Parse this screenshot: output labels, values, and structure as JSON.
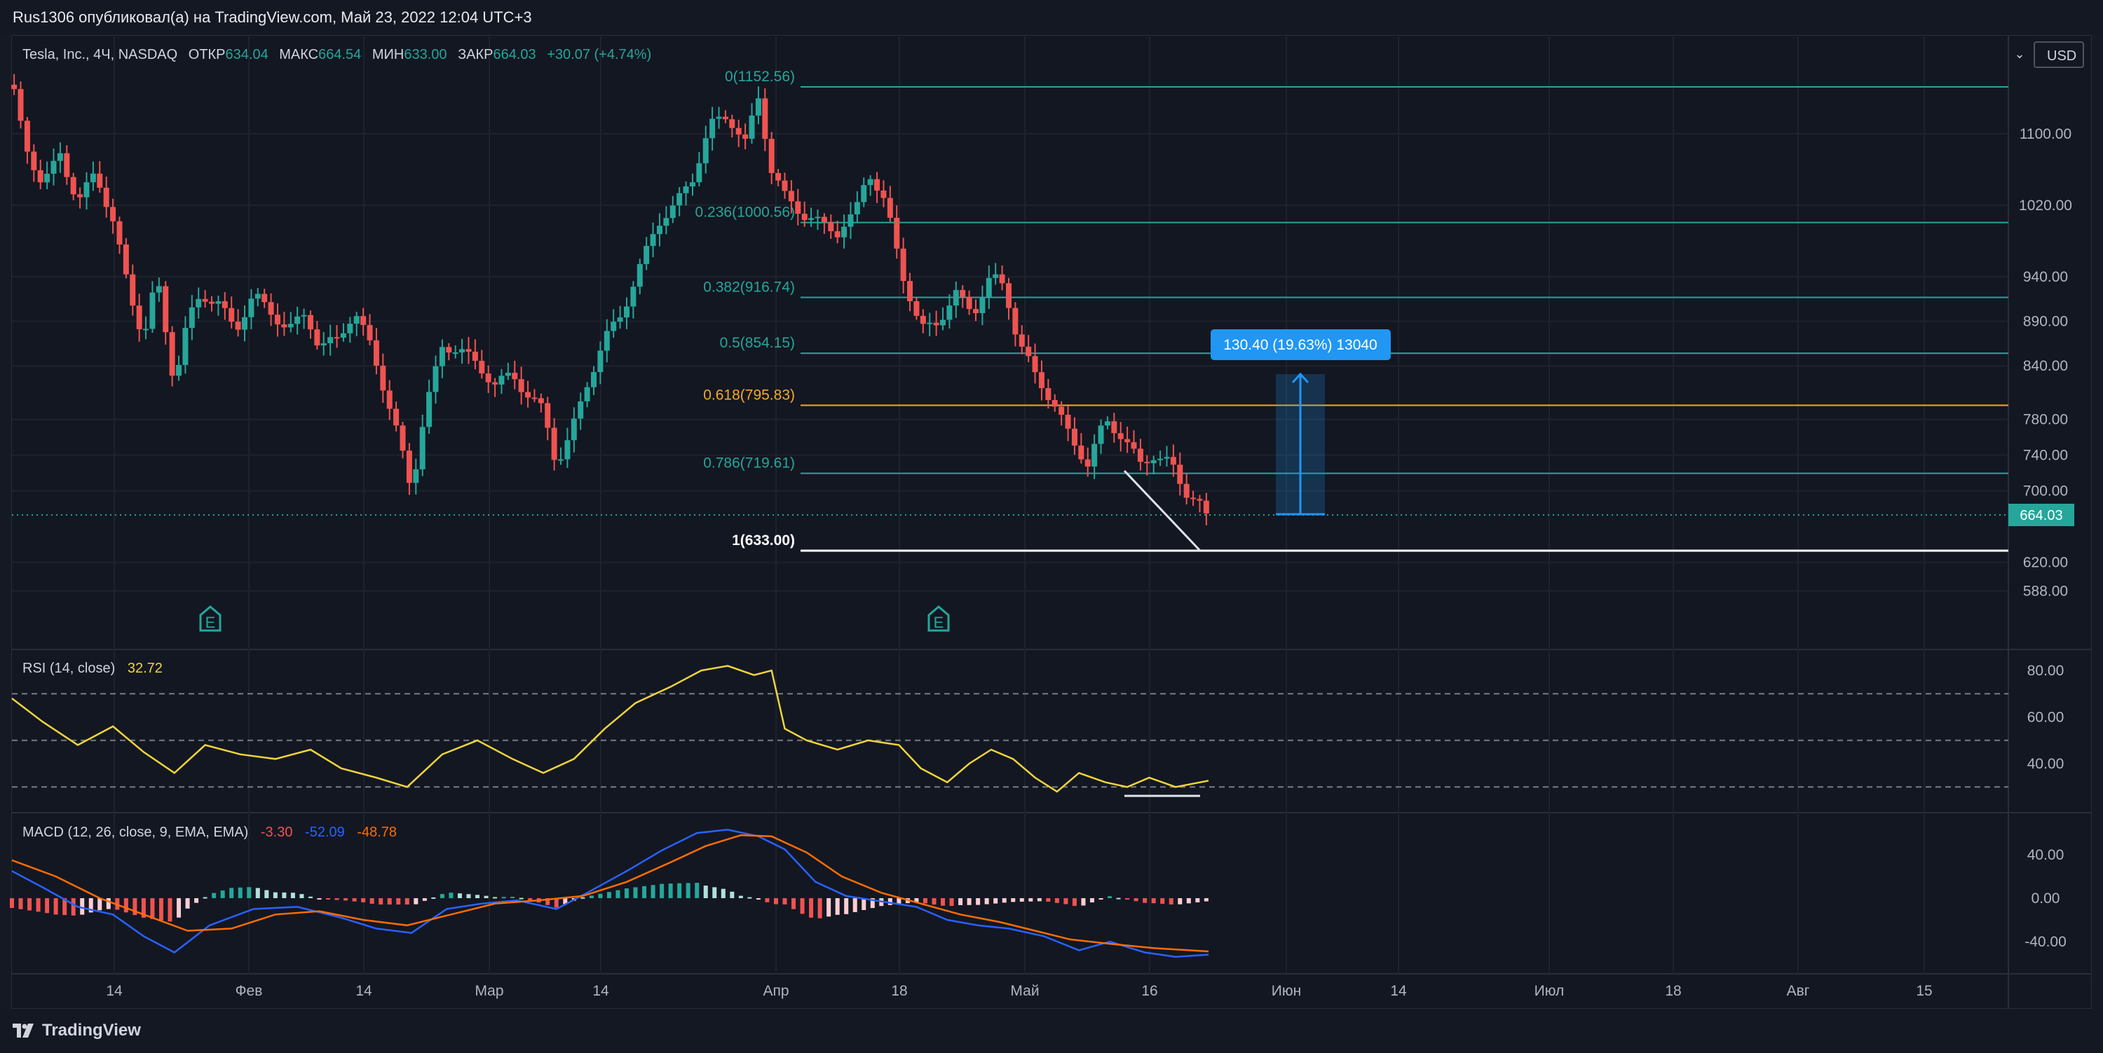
{
  "header": {
    "publisher": "Rus1306 опубликовал(а) на TradingView.com, Май 23, 2022 12:04 UTC+3"
  },
  "footer": {
    "brand": "TradingView"
  },
  "chart_data": {
    "type": "candlestick",
    "symbol": {
      "name": "Tesla, Inc., 4Ч, NASDAQ",
      "open_label": "ОТКР",
      "open": "634.04",
      "high_label": "МАКС",
      "high": "664.54",
      "low_label": "МИН",
      "low": "633.00",
      "close_label": "ЗАКР",
      "close": "664.03",
      "change": "+30.07 (+4.74%)"
    },
    "currency": "USD",
    "currency_arrow": "⌄",
    "price_axis_ticks": [
      "1100.00",
      "1020.00",
      "940.00",
      "890.00",
      "840.00",
      "780.00",
      "740.00",
      "700.00",
      "620.00",
      "588.00"
    ],
    "last_price": "664.03",
    "time_axis_labels": [
      "14",
      "Фев",
      "14",
      "Мар",
      "14",
      "Апр",
      "18",
      "Май",
      "16",
      "Июн",
      "14",
      "Июл",
      "18",
      "Авг",
      "15"
    ],
    "fibonacci": [
      {
        "level": "0(1152.56)",
        "price": 1152.56,
        "color": "#26a69a"
      },
      {
        "level": "0.236(1000.56)",
        "price": 1000.56,
        "color": "#26a69a"
      },
      {
        "level": "0.382(916.74)",
        "price": 916.74,
        "color": "#26a69a"
      },
      {
        "level": "0.5(854.15)",
        "price": 854.15,
        "color": "#26a69a"
      },
      {
        "level": "0.618(795.83)",
        "price": 795.83,
        "color": "#f7a825"
      },
      {
        "level": "0.786(719.61)",
        "price": 719.61,
        "color": "#26a69a"
      },
      {
        "level": "1(633.00)",
        "price": 633.0,
        "color": "#ffffff"
      }
    ],
    "measure_label": "130.40 (19.63%) 13040",
    "earnings_marker": "E",
    "price_path": [
      [
        0,
        1155
      ],
      [
        6,
        1090
      ],
      [
        14,
        1040
      ],
      [
        22,
        1080
      ],
      [
        30,
        1020
      ],
      [
        38,
        1060
      ],
      [
        46,
        1000
      ],
      [
        54,
        920
      ],
      [
        60,
        870
      ],
      [
        66,
        940
      ],
      [
        74,
        820
      ],
      [
        80,
        890
      ],
      [
        86,
        920
      ],
      [
        94,
        910
      ],
      [
        102,
        880
      ],
      [
        110,
        920
      ],
      [
        118,
        900
      ],
      [
        126,
        880
      ],
      [
        134,
        900
      ],
      [
        140,
        860
      ],
      [
        148,
        870
      ],
      [
        156,
        900
      ],
      [
        164,
        860
      ],
      [
        170,
        810
      ],
      [
        176,
        760
      ],
      [
        182,
        700
      ],
      [
        188,
        790
      ],
      [
        196,
        860
      ],
      [
        204,
        860
      ],
      [
        212,
        840
      ],
      [
        220,
        820
      ],
      [
        228,
        830
      ],
      [
        234,
        810
      ],
      [
        242,
        790
      ],
      [
        248,
        730
      ],
      [
        254,
        760
      ],
      [
        262,
        820
      ],
      [
        270,
        870
      ],
      [
        278,
        900
      ],
      [
        286,
        950
      ],
      [
        294,
        1000
      ],
      [
        302,
        1020
      ],
      [
        310,
        1050
      ],
      [
        318,
        1110
      ],
      [
        326,
        1120
      ],
      [
        334,
        1090
      ],
      [
        340,
        1140
      ],
      [
        346,
        1060
      ],
      [
        352,
        1030
      ],
      [
        360,
        1010
      ],
      [
        368,
        1000
      ],
      [
        376,
        990
      ],
      [
        384,
        1010
      ],
      [
        390,
        1060
      ],
      [
        398,
        1020
      ],
      [
        406,
        940
      ],
      [
        414,
        880
      ],
      [
        422,
        890
      ],
      [
        430,
        920
      ],
      [
        438,
        900
      ],
      [
        446,
        940
      ],
      [
        452,
        930
      ],
      [
        458,
        870
      ],
      [
        466,
        830
      ],
      [
        474,
        800
      ],
      [
        482,
        760
      ],
      [
        490,
        730
      ],
      [
        498,
        780
      ],
      [
        506,
        760
      ],
      [
        514,
        730
      ],
      [
        520,
        740
      ],
      [
        528,
        730
      ],
      [
        534,
        700
      ],
      [
        540,
        690
      ],
      [
        545,
        664
      ]
    ],
    "rsi": {
      "label": "RSI (14, close)",
      "value": "32.72",
      "ticks": [
        "80.00",
        "60.00",
        "40.00"
      ],
      "levels": [
        70,
        50,
        30
      ],
      "points": [
        [
          0,
          68
        ],
        [
          14,
          58
        ],
        [
          30,
          48
        ],
        [
          46,
          56
        ],
        [
          60,
          45
        ],
        [
          74,
          36
        ],
        [
          88,
          48
        ],
        [
          104,
          44
        ],
        [
          120,
          42
        ],
        [
          136,
          46
        ],
        [
          150,
          38
        ],
        [
          166,
          34
        ],
        [
          180,
          30
        ],
        [
          196,
          44
        ],
        [
          212,
          50
        ],
        [
          228,
          42
        ],
        [
          242,
          36
        ],
        [
          256,
          42
        ],
        [
          270,
          55
        ],
        [
          284,
          66
        ],
        [
          300,
          73
        ],
        [
          314,
          80
        ],
        [
          326,
          82
        ],
        [
          338,
          78
        ],
        [
          346,
          80
        ],
        [
          352,
          55
        ],
        [
          362,
          50
        ],
        [
          376,
          46
        ],
        [
          390,
          50
        ],
        [
          404,
          48
        ],
        [
          414,
          38
        ],
        [
          426,
          32
        ],
        [
          436,
          40
        ],
        [
          446,
          46
        ],
        [
          456,
          42
        ],
        [
          466,
          34
        ],
        [
          476,
          28
        ],
        [
          486,
          36
        ],
        [
          498,
          32
        ],
        [
          508,
          30
        ],
        [
          518,
          34
        ],
        [
          530,
          30
        ],
        [
          545,
          32.7
        ]
      ]
    },
    "macd": {
      "label": "MACD (12, 26, close, 9, EMA, EMA)",
      "values": [
        "-3.30",
        "-52.09",
        "-48.78"
      ],
      "ticks": [
        "40.00",
        "0.00",
        "-40.00"
      ],
      "macd_line": [
        [
          0,
          25
        ],
        [
          14,
          10
        ],
        [
          30,
          -8
        ],
        [
          46,
          -15
        ],
        [
          60,
          -35
        ],
        [
          74,
          -50
        ],
        [
          90,
          -25
        ],
        [
          110,
          -10
        ],
        [
          130,
          -8
        ],
        [
          150,
          -18
        ],
        [
          166,
          -28
        ],
        [
          182,
          -32
        ],
        [
          198,
          -10
        ],
        [
          214,
          -5
        ],
        [
          230,
          -2
        ],
        [
          248,
          -10
        ],
        [
          262,
          5
        ],
        [
          280,
          25
        ],
        [
          296,
          44
        ],
        [
          312,
          60
        ],
        [
          326,
          63
        ],
        [
          340,
          57
        ],
        [
          352,
          45
        ],
        [
          366,
          15
        ],
        [
          380,
          2
        ],
        [
          396,
          -3
        ],
        [
          412,
          -8
        ],
        [
          426,
          -20
        ],
        [
          440,
          -25
        ],
        [
          454,
          -28
        ],
        [
          470,
          -35
        ],
        [
          486,
          -48
        ],
        [
          500,
          -40
        ],
        [
          516,
          -50
        ],
        [
          530,
          -54
        ],
        [
          545,
          -52
        ]
      ],
      "signal_line": [
        [
          0,
          35
        ],
        [
          20,
          20
        ],
        [
          40,
          0
        ],
        [
          60,
          -15
        ],
        [
          80,
          -30
        ],
        [
          100,
          -28
        ],
        [
          120,
          -15
        ],
        [
          140,
          -12
        ],
        [
          160,
          -20
        ],
        [
          180,
          -25
        ],
        [
          200,
          -15
        ],
        [
          220,
          -5
        ],
        [
          240,
          -2
        ],
        [
          260,
          2
        ],
        [
          280,
          15
        ],
        [
          300,
          33
        ],
        [
          316,
          48
        ],
        [
          332,
          58
        ],
        [
          346,
          57
        ],
        [
          362,
          42
        ],
        [
          378,
          20
        ],
        [
          396,
          5
        ],
        [
          414,
          -5
        ],
        [
          432,
          -15
        ],
        [
          450,
          -22
        ],
        [
          466,
          -30
        ],
        [
          482,
          -38
        ],
        [
          500,
          -42
        ],
        [
          520,
          -46
        ],
        [
          545,
          -49
        ]
      ]
    },
    "colors": {
      "up": "#26a69a",
      "down": "#ef5350",
      "rsi": "#f0d53a",
      "macd": "#2962ff",
      "signal": "#ff6d00",
      "fib_mid": "#f7a825",
      "measure": "#2196f3"
    }
  }
}
